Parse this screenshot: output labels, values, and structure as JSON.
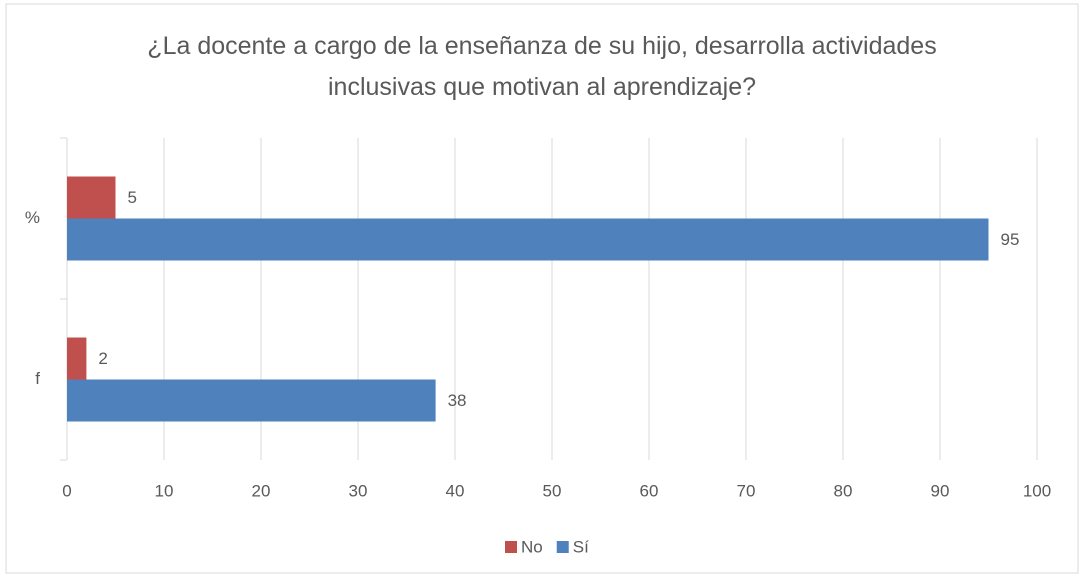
{
  "chart_data": {
    "type": "hbar",
    "title": "¿La docente a cargo de la enseñanza de su hijo, desarrolla actividades inclusivas que motivan al aprendizaje?",
    "categories": [
      "%",
      "f"
    ],
    "series": [
      {
        "name": "No",
        "color": "#c0504d",
        "values": [
          5,
          2
        ]
      },
      {
        "name": "Sí",
        "color": "#4f81bd",
        "values": [
          95,
          38
        ]
      }
    ],
    "xlim": [
      0,
      100
    ],
    "xticks": [
      0,
      10,
      20,
      30,
      40,
      50,
      60,
      70,
      80,
      90,
      100
    ],
    "grid": true,
    "legend": "bottom"
  }
}
